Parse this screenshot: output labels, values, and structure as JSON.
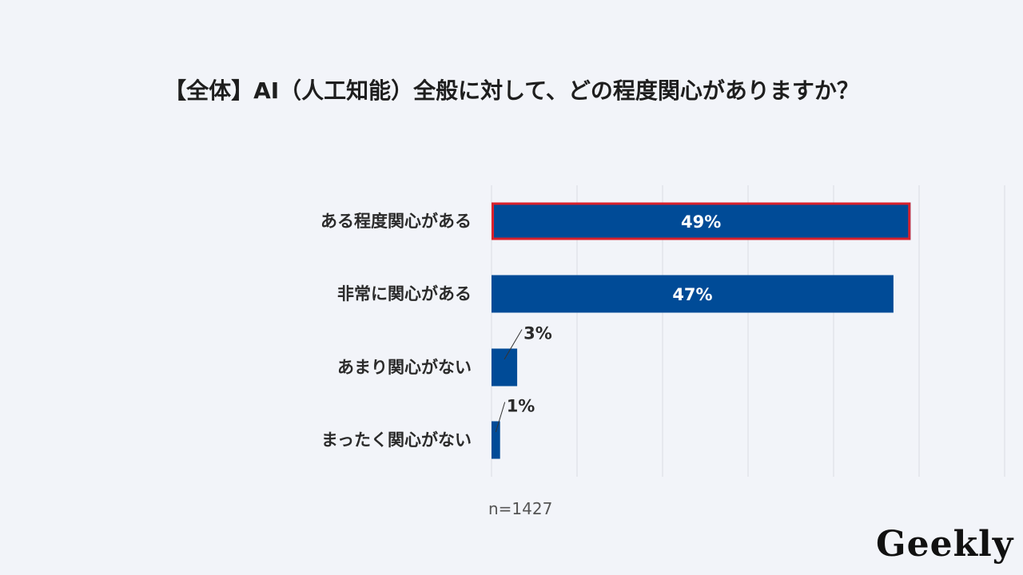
{
  "chart_data": {
    "type": "bar",
    "orientation": "horizontal",
    "title": "【全体】AI（人工知能）全般に対して、どの程度関心がありますか？",
    "categories": [
      "ある程度関心がある",
      "非常に関心がある",
      "あまり関心がない",
      "まったく関心がない"
    ],
    "values": [
      49,
      47,
      3,
      1
    ],
    "value_labels": [
      "49%",
      "47%",
      "3%",
      "1%"
    ],
    "xlim": [
      0,
      60
    ],
    "grid": true,
    "highlight_category": "ある程度関心がある",
    "colors": {
      "bar": "#004b97",
      "highlight_border": "#d9212c",
      "grid": "#d9dce3"
    }
  },
  "sample_size": "n=1427",
  "logo": "Geekly"
}
